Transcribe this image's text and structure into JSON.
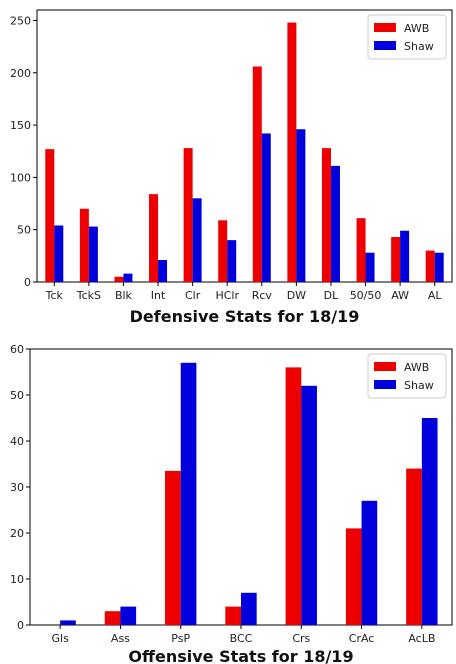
{
  "chart_data": [
    {
      "type": "bar",
      "title": "Defensive Stats for 18/19",
      "categories": [
        "Tck",
        "TckS",
        "Blk",
        "Int",
        "Clr",
        "HClr",
        "Rcv",
        "DW",
        "DL",
        "50/50",
        "AW",
        "AL"
      ],
      "series": [
        {
          "name": "AWB",
          "color": "#ee0000",
          "values": [
            127,
            70,
            5,
            84,
            128,
            59,
            206,
            248,
            128,
            61,
            43,
            30
          ]
        },
        {
          "name": "Shaw",
          "color": "#0000dd",
          "values": [
            54,
            53,
            8,
            21,
            80,
            40,
            142,
            146,
            111,
            28,
            49,
            28
          ]
        }
      ],
      "ylim": [
        0,
        260
      ],
      "yticks": [
        0,
        50,
        100,
        150,
        200,
        250
      ],
      "legend": "top-right",
      "grid": false
    },
    {
      "type": "bar",
      "title": "Offensive Stats for 18/19",
      "categories": [
        "Gls",
        "Ass",
        "PsP",
        "BCC",
        "Crs",
        "CrAc",
        "AcLB"
      ],
      "series": [
        {
          "name": "AWB",
          "color": "#ee0000",
          "values": [
            0,
            3,
            33.5,
            4,
            56,
            21,
            34
          ]
        },
        {
          "name": "Shaw",
          "color": "#0000dd",
          "values": [
            1,
            4,
            57,
            7,
            52,
            27,
            45
          ]
        }
      ],
      "ylim": [
        0,
        60
      ],
      "yticks": [
        0,
        10,
        20,
        30,
        40,
        50,
        60
      ],
      "legend": "top-right",
      "grid": false
    }
  ]
}
